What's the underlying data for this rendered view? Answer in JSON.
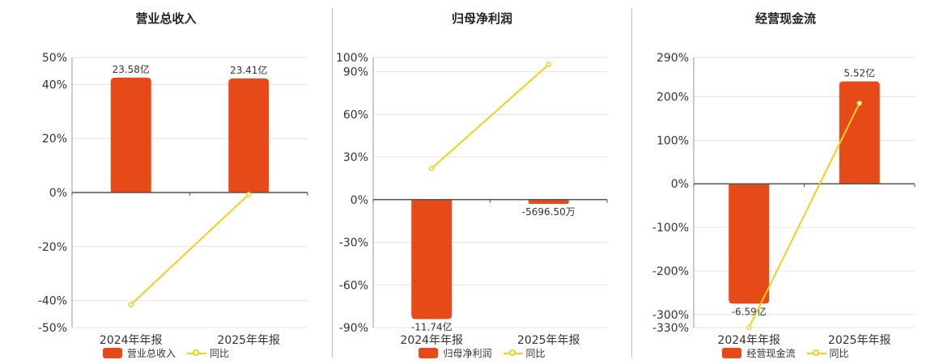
{
  "colors": {
    "bar": "#E64A19",
    "line": "#F2D01B",
    "grid": "#e3e3e3",
    "axis": "#555555"
  },
  "chart_data": [
    {
      "type": "bar",
      "title": "营业总收入",
      "categories": [
        "2024年年报",
        "2025年年报"
      ],
      "series": [
        {
          "name": "营业总收入",
          "values": [
            23.58,
            23.41
          ],
          "unit": "亿"
        },
        {
          "name": "同比",
          "type": "line",
          "values": [
            -41.5,
            -0.7
          ],
          "unit": "%"
        }
      ],
      "bar_labels": [
        "23.58亿",
        "23.41亿"
      ],
      "ylim": [
        -50,
        50
      ],
      "yticks": [
        "50%",
        "40%",
        "20%",
        "0%",
        "-20%",
        "-40%",
        "-50%"
      ],
      "ytick_values": [
        50,
        40,
        20,
        0,
        -20,
        -40,
        -50
      ],
      "bar_pct": [
        42.5,
        42.2
      ],
      "grid": true,
      "legend": "bottom"
    },
    {
      "type": "bar",
      "title": "归母净利润",
      "categories": [
        "2024年年报",
        "2025年年报"
      ],
      "series": [
        {
          "name": "归母净利润",
          "values": [
            -11.74,
            -0.56965
          ],
          "unit": "亿"
        },
        {
          "name": "同比",
          "type": "line",
          "values": [
            22,
            95
          ],
          "unit": "%"
        }
      ],
      "bar_labels": [
        "-11.74亿",
        "-5696.50万"
      ],
      "ylim": [
        -90,
        100
      ],
      "yticks": [
        "100%",
        "90%",
        "60%",
        "30%",
        "0%",
        "-30%",
        "-60%",
        "-90%"
      ],
      "ytick_values": [
        100,
        90,
        60,
        30,
        0,
        -30,
        -60,
        -90
      ],
      "bar_pct": [
        -84,
        -3
      ],
      "grid": true,
      "legend": "bottom"
    },
    {
      "type": "bar",
      "title": "经营现金流",
      "categories": [
        "2024年年报",
        "2025年年报"
      ],
      "series": [
        {
          "name": "经营现金流",
          "values": [
            -6.59,
            5.52
          ],
          "unit": "亿"
        },
        {
          "name": "同比",
          "type": "line",
          "values": [
            -330,
            185
          ],
          "unit": "%"
        }
      ],
      "bar_labels": [
        "-6.59亿",
        "5.52亿"
      ],
      "ylim": [
        -330,
        290
      ],
      "yticks": [
        "290%",
        "200%",
        "100%",
        "0%",
        "-100%",
        "-200%",
        "-300%",
        "-330%"
      ],
      "ytick_values": [
        290,
        200,
        100,
        0,
        -100,
        -200,
        -300,
        -330
      ],
      "bar_pct": [
        -275,
        235
      ],
      "grid": true,
      "legend": "bottom"
    }
  ]
}
